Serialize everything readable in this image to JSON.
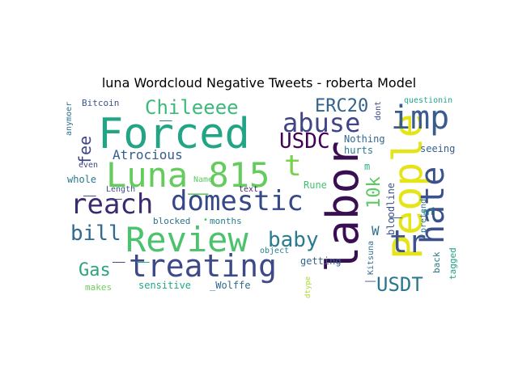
{
  "figure": {
    "title": "luna Wordcloud Negative Tweets - roberta Model"
  },
  "words": [
    {
      "text": "Forced",
      "color": "#21a585"
    },
    {
      "text": "labor",
      "color": "#3a0f51"
    },
    {
      "text": "Luna_815",
      "color": "#64cb5d"
    },
    {
      "text": "People",
      "color": "#e5e419"
    },
    {
      "text": "Review",
      "color": "#4dc26c"
    },
    {
      "text": "treating",
      "color": "#3e4989"
    },
    {
      "text": "domestic",
      "color": "#36478a"
    },
    {
      "text": "reach",
      "color": "#3c2a71"
    },
    {
      "text": "imp",
      "color": "#375c8d"
    },
    {
      "text": "abuse",
      "color": "#414487"
    },
    {
      "text": "hate",
      "color": "#3c508b"
    },
    {
      "text": "tr",
      "color": "#3b528b"
    },
    {
      "text": "t",
      "color": "#7ad151"
    },
    {
      "text": "Chileeee",
      "color": "#3db97b"
    },
    {
      "text": "USDC",
      "color": "#440154"
    },
    {
      "text": "ERC20",
      "color": "#33628d"
    },
    {
      "text": "bill",
      "color": "#306a8e"
    },
    {
      "text": "baby",
      "color": "#287c8e"
    },
    {
      "text": "Gas",
      "color": "#2ea37e"
    },
    {
      "text": "USDT",
      "color": "#2a768e"
    },
    {
      "text": "10k",
      "color": "#5ec962"
    },
    {
      "text": "fee",
      "color": "#414487"
    },
    {
      "text": "Atrocious",
      "color": "#365c8d"
    },
    {
      "text": "W",
      "color": "#2d708e"
    },
    {
      "text": "Nothing",
      "color": "#31688e"
    },
    {
      "text": "hurts",
      "color": "#2b7b8e"
    },
    {
      "text": "seeing",
      "color": "#36618d"
    },
    {
      "text": "Bitcoin",
      "color": "#3b528b"
    },
    {
      "text": "whole",
      "color": "#2a788e"
    },
    {
      "text": "blocked",
      "color": "#2c728e"
    },
    {
      "text": "months",
      "color": "#277f8e"
    },
    {
      "text": "Rune",
      "color": "#44bf70"
    },
    {
      "text": "getting",
      "color": "#33638d"
    },
    {
      "text": "sensitive",
      "color": "#22a884"
    },
    {
      "text": "_Wolffe",
      "color": "#31688e"
    },
    {
      "text": "makes",
      "color": "#6ece58"
    },
    {
      "text": "bloodline",
      "color": "#3b528b"
    },
    {
      "text": "pretend",
      "color": "#2c738e"
    },
    {
      "text": "tagged",
      "color": "#20a386"
    },
    {
      "text": "back",
      "color": "#2a788e"
    },
    {
      "text": "mf",
      "color": "#26828e"
    },
    {
      "text": "Kitsuna",
      "color": "#2e6e8e"
    },
    {
      "text": "dont",
      "color": "#3e4989"
    },
    {
      "text": "questionin",
      "color": "#22a785"
    },
    {
      "text": "anymoer",
      "color": "#2d708e"
    },
    {
      "text": "even",
      "color": "#3e4989"
    },
    {
      "text": "Length",
      "color": "#3c4f8a"
    },
    {
      "text": "Name",
      "color": "#5ec962"
    },
    {
      "text": "text",
      "color": "#482878"
    },
    {
      "text": "object",
      "color": "#25838e"
    },
    {
      "text": "dtype",
      "color": "#addc30"
    },
    {
      "text": "m",
      "color": "#2fb47c"
    },
    {
      "text": "_",
      "color": "#25858e"
    },
    {
      "text": "_",
      "color": "#3b528b"
    },
    {
      "text": "_",
      "color": "#3e4989"
    },
    {
      "text": "_",
      "color": "#3e4a89"
    },
    {
      "text": "_",
      "color": "#27ad81"
    },
    {
      "text": "_",
      "color": "#31688e"
    },
    {
      "text": "_",
      "color": "#3b528b"
    },
    {
      "text": "•",
      "color": "#4ac16d"
    }
  ]
}
